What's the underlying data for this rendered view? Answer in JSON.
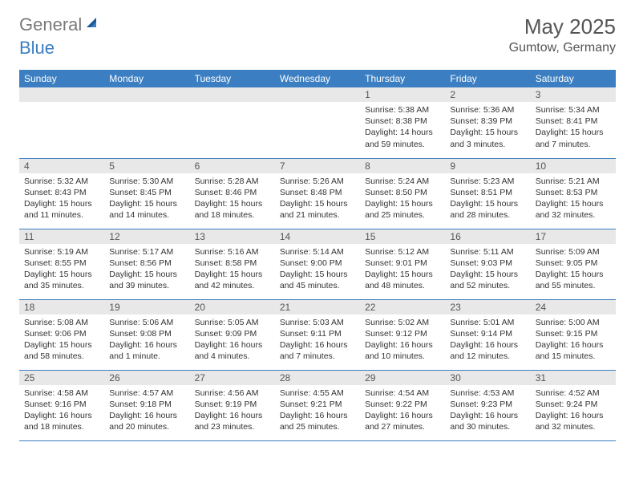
{
  "logo": {
    "text1": "General",
    "text2": "Blue"
  },
  "title": "May 2025",
  "location": "Gumtow, Germany",
  "colors": {
    "header_bg": "#3b7ec1",
    "header_fg": "#ffffff",
    "daynum_bg": "#e8e8e8",
    "row_border": "#3b7ec1",
    "logo_gray": "#7a7a7a",
    "logo_blue": "#3b7ec1"
  },
  "weekdays": [
    "Sunday",
    "Monday",
    "Tuesday",
    "Wednesday",
    "Thursday",
    "Friday",
    "Saturday"
  ],
  "weeks": [
    [
      null,
      null,
      null,
      null,
      {
        "n": "1",
        "sr": "Sunrise: 5:38 AM",
        "ss": "Sunset: 8:38 PM",
        "dl": "Daylight: 14 hours and 59 minutes."
      },
      {
        "n": "2",
        "sr": "Sunrise: 5:36 AM",
        "ss": "Sunset: 8:39 PM",
        "dl": "Daylight: 15 hours and 3 minutes."
      },
      {
        "n": "3",
        "sr": "Sunrise: 5:34 AM",
        "ss": "Sunset: 8:41 PM",
        "dl": "Daylight: 15 hours and 7 minutes."
      }
    ],
    [
      {
        "n": "4",
        "sr": "Sunrise: 5:32 AM",
        "ss": "Sunset: 8:43 PM",
        "dl": "Daylight: 15 hours and 11 minutes."
      },
      {
        "n": "5",
        "sr": "Sunrise: 5:30 AM",
        "ss": "Sunset: 8:45 PM",
        "dl": "Daylight: 15 hours and 14 minutes."
      },
      {
        "n": "6",
        "sr": "Sunrise: 5:28 AM",
        "ss": "Sunset: 8:46 PM",
        "dl": "Daylight: 15 hours and 18 minutes."
      },
      {
        "n": "7",
        "sr": "Sunrise: 5:26 AM",
        "ss": "Sunset: 8:48 PM",
        "dl": "Daylight: 15 hours and 21 minutes."
      },
      {
        "n": "8",
        "sr": "Sunrise: 5:24 AM",
        "ss": "Sunset: 8:50 PM",
        "dl": "Daylight: 15 hours and 25 minutes."
      },
      {
        "n": "9",
        "sr": "Sunrise: 5:23 AM",
        "ss": "Sunset: 8:51 PM",
        "dl": "Daylight: 15 hours and 28 minutes."
      },
      {
        "n": "10",
        "sr": "Sunrise: 5:21 AM",
        "ss": "Sunset: 8:53 PM",
        "dl": "Daylight: 15 hours and 32 minutes."
      }
    ],
    [
      {
        "n": "11",
        "sr": "Sunrise: 5:19 AM",
        "ss": "Sunset: 8:55 PM",
        "dl": "Daylight: 15 hours and 35 minutes."
      },
      {
        "n": "12",
        "sr": "Sunrise: 5:17 AM",
        "ss": "Sunset: 8:56 PM",
        "dl": "Daylight: 15 hours and 39 minutes."
      },
      {
        "n": "13",
        "sr": "Sunrise: 5:16 AM",
        "ss": "Sunset: 8:58 PM",
        "dl": "Daylight: 15 hours and 42 minutes."
      },
      {
        "n": "14",
        "sr": "Sunrise: 5:14 AM",
        "ss": "Sunset: 9:00 PM",
        "dl": "Daylight: 15 hours and 45 minutes."
      },
      {
        "n": "15",
        "sr": "Sunrise: 5:12 AM",
        "ss": "Sunset: 9:01 PM",
        "dl": "Daylight: 15 hours and 48 minutes."
      },
      {
        "n": "16",
        "sr": "Sunrise: 5:11 AM",
        "ss": "Sunset: 9:03 PM",
        "dl": "Daylight: 15 hours and 52 minutes."
      },
      {
        "n": "17",
        "sr": "Sunrise: 5:09 AM",
        "ss": "Sunset: 9:05 PM",
        "dl": "Daylight: 15 hours and 55 minutes."
      }
    ],
    [
      {
        "n": "18",
        "sr": "Sunrise: 5:08 AM",
        "ss": "Sunset: 9:06 PM",
        "dl": "Daylight: 15 hours and 58 minutes."
      },
      {
        "n": "19",
        "sr": "Sunrise: 5:06 AM",
        "ss": "Sunset: 9:08 PM",
        "dl": "Daylight: 16 hours and 1 minute."
      },
      {
        "n": "20",
        "sr": "Sunrise: 5:05 AM",
        "ss": "Sunset: 9:09 PM",
        "dl": "Daylight: 16 hours and 4 minutes."
      },
      {
        "n": "21",
        "sr": "Sunrise: 5:03 AM",
        "ss": "Sunset: 9:11 PM",
        "dl": "Daylight: 16 hours and 7 minutes."
      },
      {
        "n": "22",
        "sr": "Sunrise: 5:02 AM",
        "ss": "Sunset: 9:12 PM",
        "dl": "Daylight: 16 hours and 10 minutes."
      },
      {
        "n": "23",
        "sr": "Sunrise: 5:01 AM",
        "ss": "Sunset: 9:14 PM",
        "dl": "Daylight: 16 hours and 12 minutes."
      },
      {
        "n": "24",
        "sr": "Sunrise: 5:00 AM",
        "ss": "Sunset: 9:15 PM",
        "dl": "Daylight: 16 hours and 15 minutes."
      }
    ],
    [
      {
        "n": "25",
        "sr": "Sunrise: 4:58 AM",
        "ss": "Sunset: 9:16 PM",
        "dl": "Daylight: 16 hours and 18 minutes."
      },
      {
        "n": "26",
        "sr": "Sunrise: 4:57 AM",
        "ss": "Sunset: 9:18 PM",
        "dl": "Daylight: 16 hours and 20 minutes."
      },
      {
        "n": "27",
        "sr": "Sunrise: 4:56 AM",
        "ss": "Sunset: 9:19 PM",
        "dl": "Daylight: 16 hours and 23 minutes."
      },
      {
        "n": "28",
        "sr": "Sunrise: 4:55 AM",
        "ss": "Sunset: 9:21 PM",
        "dl": "Daylight: 16 hours and 25 minutes."
      },
      {
        "n": "29",
        "sr": "Sunrise: 4:54 AM",
        "ss": "Sunset: 9:22 PM",
        "dl": "Daylight: 16 hours and 27 minutes."
      },
      {
        "n": "30",
        "sr": "Sunrise: 4:53 AM",
        "ss": "Sunset: 9:23 PM",
        "dl": "Daylight: 16 hours and 30 minutes."
      },
      {
        "n": "31",
        "sr": "Sunrise: 4:52 AM",
        "ss": "Sunset: 9:24 PM",
        "dl": "Daylight: 16 hours and 32 minutes."
      }
    ]
  ]
}
